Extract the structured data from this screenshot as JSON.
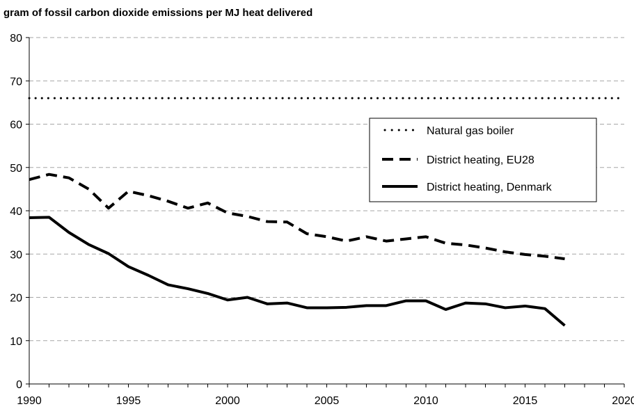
{
  "chart_data": {
    "type": "line",
    "title": "gram of fossil carbon dioxide emissions per MJ heat delivered",
    "xlabel": "",
    "ylabel": "",
    "xlim": [
      1990,
      2020
    ],
    "ylim": [
      0,
      80
    ],
    "x_ticks": [
      "1990",
      "1995",
      "2000",
      "2005",
      "2010",
      "2015",
      "2020"
    ],
    "y_ticks": [
      "0",
      "10",
      "20",
      "30",
      "40",
      "50",
      "60",
      "70",
      "80"
    ],
    "grid": "horizontal dashed",
    "legend_position": "right-center",
    "series": [
      {
        "name": "Natural gas boiler",
        "style": "dotted",
        "color": "#000000",
        "x": [
          1990,
          2020
        ],
        "values": [
          66,
          66
        ]
      },
      {
        "name": "District heating, EU28",
        "style": "dashed",
        "color": "#000000",
        "x": [
          1990,
          1991,
          1992,
          1993,
          1994,
          1995,
          1996,
          1997,
          1998,
          1999,
          2000,
          2001,
          2002,
          2003,
          2004,
          2005,
          2006,
          2007,
          2008,
          2009,
          2010,
          2011,
          2012,
          2013,
          2014,
          2015,
          2016,
          2017
        ],
        "values": [
          47.2,
          48.4,
          47.6,
          45.0,
          40.6,
          44.5,
          43.5,
          42.2,
          40.6,
          41.8,
          39.5,
          38.7,
          37.5,
          37.4,
          34.7,
          34.0,
          33.0,
          34.0,
          33.0,
          33.5,
          34.0,
          32.5,
          32.1,
          31.4,
          30.5,
          29.9,
          29.5,
          28.9
        ]
      },
      {
        "name": "District heating, Denmark",
        "style": "solid",
        "color": "#000000",
        "x": [
          1990,
          1991,
          1992,
          1993,
          1994,
          1995,
          1996,
          1997,
          1998,
          1999,
          2000,
          2001,
          2002,
          2003,
          2004,
          2005,
          2006,
          2007,
          2008,
          2009,
          2010,
          2011,
          2012,
          2013,
          2014,
          2015,
          2016,
          2017
        ],
        "values": [
          38.4,
          38.5,
          35.0,
          32.2,
          30.1,
          27.1,
          25.1,
          22.9,
          22.0,
          20.9,
          19.4,
          20.0,
          18.5,
          18.7,
          17.6,
          17.6,
          17.7,
          18.1,
          18.1,
          19.2,
          19.2,
          17.2,
          18.7,
          18.5,
          17.6,
          18.0,
          17.4,
          13.5
        ]
      }
    ]
  }
}
